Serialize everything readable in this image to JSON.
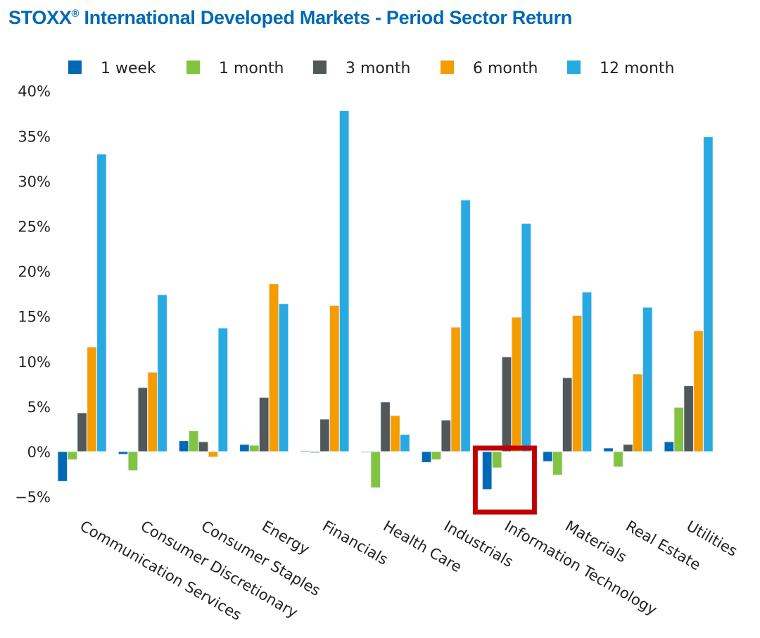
{
  "chart_data": {
    "type": "bar",
    "title": "STOXX",
    "title_mark": "®",
    "title_rest": " International Developed Markets - Period Sector Return",
    "xlabel": "",
    "ylabel": "",
    "ylim": [
      -5,
      40
    ],
    "yticks": [
      -5,
      0,
      5,
      10,
      15,
      20,
      25,
      30,
      35,
      40
    ],
    "ytick_labels": [
      "−5%",
      "0%",
      "5%",
      "10%",
      "15%",
      "20%",
      "25%",
      "30%",
      "35%",
      "40%"
    ],
    "grid": false,
    "legend_position": "top",
    "categories": [
      "Communication Services",
      "Consumer Discretionary",
      "Consumer Staples",
      "Energy",
      "Financials",
      "Health Care",
      "Industrials",
      "Information Technology",
      "Materials",
      "Real Estate",
      "Utilities"
    ],
    "series": [
      {
        "name": "1 week",
        "color": "#0069b4",
        "values": [
          -3.3,
          -0.3,
          1.2,
          0.8,
          0.1,
          -0.05,
          -1.2,
          -4.2,
          -1.1,
          0.4,
          1.1
        ]
      },
      {
        "name": "1 month",
        "color": "#82c341",
        "values": [
          -0.9,
          -2.1,
          2.3,
          0.7,
          -0.15,
          -4.0,
          -0.9,
          -1.8,
          -2.6,
          -1.7,
          4.9
        ]
      },
      {
        "name": "3 month",
        "color": "#52575a",
        "values": [
          4.3,
          7.1,
          1.1,
          6.0,
          3.6,
          5.5,
          3.5,
          10.5,
          8.2,
          0.8,
          7.3
        ]
      },
      {
        "name": "6 month",
        "color": "#f59c00",
        "values": [
          11.6,
          8.8,
          -0.6,
          18.6,
          16.2,
          4.0,
          13.8,
          14.9,
          15.1,
          8.6,
          13.4
        ]
      },
      {
        "name": "12 month",
        "color": "#27a9e1",
        "values": [
          33.0,
          17.4,
          13.7,
          16.4,
          37.8,
          1.9,
          27.9,
          25.3,
          17.7,
          16.0,
          34.9
        ]
      }
    ],
    "annotations": [
      {
        "type": "highlight-box",
        "target_category": "Information Technology",
        "target_series": [
          "1 week",
          "1 month"
        ],
        "color": "#c00000"
      }
    ]
  }
}
